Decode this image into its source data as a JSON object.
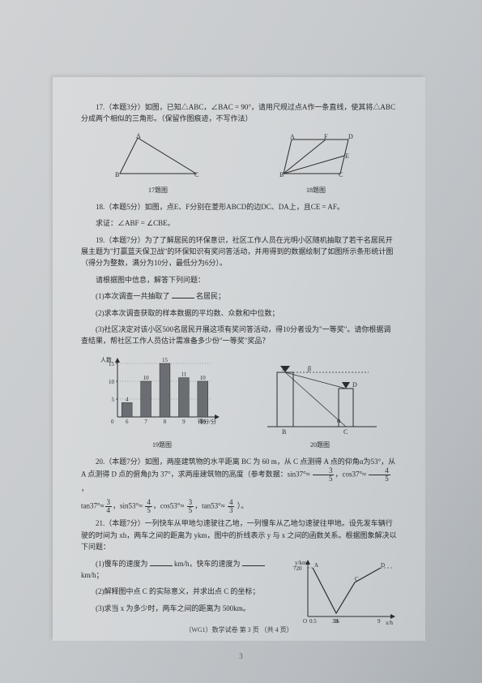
{
  "q17": {
    "text": "17.（本题3分）如图，已知△ABC，∠BAC = 90°，请用尺规过点A作一条直线，使其将△ABC分成两个相似的三角形。（保留作图痕迹，不写作法）",
    "fig_label_left": "17题图",
    "fig_label_right": "18题图"
  },
  "q18": {
    "text": "18.（本题5分）如图，点E、F分别在菱形ABCD的边DC、DA上，且CE = AF。",
    "text2": "求证：∠ABF = ∠CBE。"
  },
  "q19": {
    "intro": "19.（本题7分）为了了解居民的环保意识，社区工作人员在光明小区随机抽取了若干名居民开展主题为\"打赢蓝天保卫战\"的环保知识有奖问答活动，并用得到的数据绘制了如图所示条形统计图（得分为整数，满分为10分，最低分为6分）。",
    "prompt": "请根据图中信息，解答下列问题：",
    "sub1": "(1)本次调查一共抽取了",
    "sub1_suffix": "名居民；",
    "sub2": "(2)求本次调查获取的样本数据的平均数、众数和中位数；",
    "sub3": "(3)社区决定对该小区500名居民开展这项有奖问答活动，得10分者设为\"一等奖\"。请你根据调查结果，帮社区工作人员估计需准备多少份\"一等奖\"奖品？",
    "chart": {
      "ylabel": "人数",
      "xlabel": "得分/分",
      "categories": [
        "6",
        "7",
        "8",
        "9",
        "10"
      ],
      "values": [
        4,
        10,
        15,
        11,
        10
      ],
      "value_labels": [
        "4",
        "10",
        "15",
        "11",
        "10"
      ],
      "ymax": 15,
      "ytick": 5,
      "bar_color": "#6a6e72",
      "axis_color": "#2a2c2e",
      "width": 150,
      "height": 90
    },
    "fig_label_left": "19题图",
    "fig_label_right": "20题图"
  },
  "q20": {
    "text": "20.（本题7分）如图，两座建筑物的水平距离 BC 为 60 m，从 C 点测得 A 点的仰角α为53°，从 A 点测得 D 点的俯角β为 37°，求两座建筑物的高度（参考数据：sin37°≈",
    "sin37_num": "3",
    "sin37_den": "5",
    "cos37_num": "4",
    "cos37_den": "5",
    "tan37_num": "3",
    "tan37_den": "4",
    "sin53_num": "4",
    "sin53_den": "5",
    "cos53_num": "3",
    "cos53_den": "5",
    "tan53_num": "4",
    "tan53_den": "3",
    "close": "）。"
  },
  "q21": {
    "text": "21.（本题7分）一列快车从甲地匀速驶往乙地，一列慢车从乙地匀速驶往甲地。设先发车辆行驶的时间为 xh，两车之间的距离为 ykm，图中的折线表示 y 与 x 之间的函数关系。根据图象解决以下问题：",
    "sub1_a": "(1)慢车的速度为",
    "sub1_b": "km/h，快车的速度为",
    "sub1_c": "km/h；",
    "sub2": "(2)解释图中点 C 的实际意义，并求出点 C 的坐标；",
    "sub3": "(3)求当 x 为多少时，两车之间的距离为 500km。",
    "graph": {
      "ylabel_val": "720",
      "xticks": [
        "0.5",
        "3.6",
        "9"
      ],
      "xlabel": "x/h",
      "ylabel_axis": "y/km",
      "points_labels": [
        "A",
        "B",
        "C",
        "D"
      ],
      "line_color": "#2a2c2e"
    }
  },
  "footer": {
    "text": "（WG1）数学试卷  第 3 页 （共 4 页）"
  },
  "page_number": "3"
}
